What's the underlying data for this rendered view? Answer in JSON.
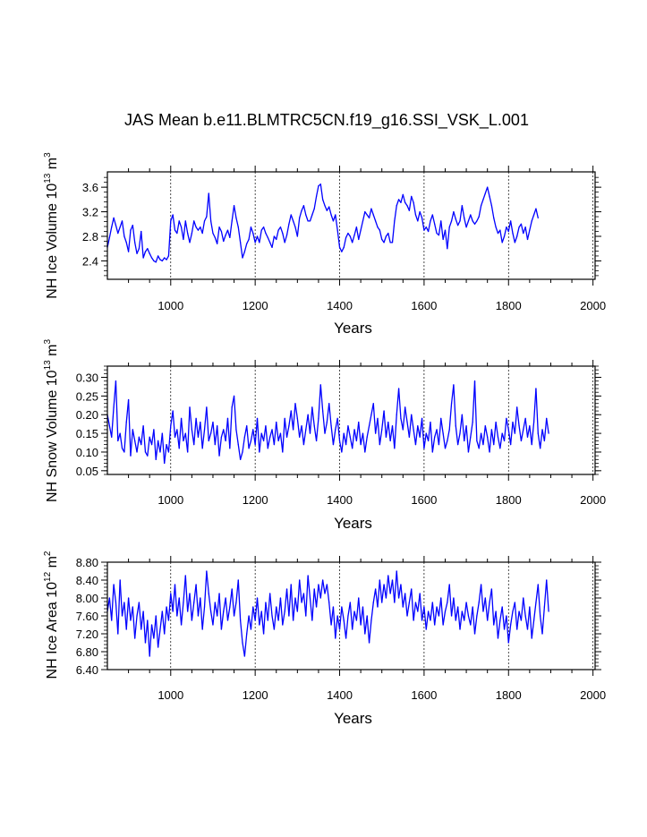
{
  "title": "JAS Mean b.e11.BLMTRC5CN.f19_g16.SSI_VSK_L.001",
  "series_color": "#0000ff",
  "chart_data": [
    {
      "type": "line",
      "name": "ice-volume",
      "ylabel": {
        "text": "NH Ice Volume 10",
        "exponent": "13",
        "unit": " m",
        "unit_exponent": "3"
      },
      "xlabel": "Years",
      "xlim": [
        850,
        2005
      ],
      "ylim": [
        2.1,
        3.85
      ],
      "xticks": [
        1000,
        1200,
        1400,
        1600,
        1800,
        2000
      ],
      "yticks": [
        "2.4",
        "2.8",
        "3.2",
        "3.6"
      ],
      "x_start": 850,
      "x_step": 5,
      "values": [
        2.62,
        2.78,
        2.95,
        3.1,
        2.98,
        2.85,
        2.95,
        3.05,
        2.8,
        2.7,
        2.55,
        2.9,
        2.98,
        2.7,
        2.52,
        2.6,
        2.88,
        2.45,
        2.55,
        2.6,
        2.52,
        2.45,
        2.4,
        2.38,
        2.48,
        2.42,
        2.4,
        2.45,
        2.42,
        2.48,
        3.05,
        3.15,
        2.9,
        2.85,
        3.05,
        2.95,
        2.75,
        3.05,
        2.85,
        2.7,
        2.85,
        3.05,
        2.95,
        2.9,
        2.95,
        2.85,
        3.05,
        3.12,
        3.5,
        3.05,
        2.85,
        2.78,
        2.68,
        2.95,
        2.88,
        2.72,
        2.82,
        2.9,
        2.78,
        3.05,
        3.3,
        3.1,
        2.95,
        2.7,
        2.45,
        2.55,
        2.68,
        2.75,
        2.95,
        2.85,
        2.7,
        2.8,
        2.7,
        2.9,
        2.95,
        2.85,
        2.78,
        2.7,
        2.62,
        2.8,
        2.75,
        2.9,
        2.95,
        2.85,
        2.7,
        2.82,
        3.0,
        3.15,
        3.05,
        2.95,
        2.8,
        3.1,
        3.22,
        3.3,
        3.15,
        3.05,
        3.05,
        3.15,
        3.25,
        3.45,
        3.62,
        3.65,
        3.4,
        3.3,
        3.22,
        3.28,
        3.15,
        3.05,
        3.15,
        2.9,
        2.62,
        2.55,
        2.62,
        2.78,
        2.85,
        2.8,
        2.7,
        2.82,
        2.95,
        2.75,
        2.9,
        3.05,
        3.2,
        3.15,
        3.1,
        3.25,
        3.15,
        3.05,
        2.95,
        2.9,
        2.75,
        2.7,
        2.8,
        2.85,
        2.7,
        2.7,
        3.05,
        3.3,
        3.4,
        3.35,
        3.48,
        3.35,
        3.3,
        3.22,
        3.45,
        3.35,
        3.15,
        3.05,
        3.2,
        3.1,
        2.9,
        2.95,
        2.88,
        3.05,
        3.15,
        3.0,
        2.85,
        2.82,
        3.05,
        2.75,
        2.9,
        2.6,
        2.95,
        3.05,
        3.2,
        3.08,
        2.98,
        3.05,
        3.3,
        3.1,
        2.95,
        3.05,
        3.15,
        3.05,
        3.0,
        3.05,
        3.12,
        3.3,
        3.4,
        3.5,
        3.6,
        3.45,
        3.3,
        3.1,
        2.95,
        2.85,
        2.9,
        2.7,
        2.8,
        2.95,
        2.88,
        3.05,
        2.85,
        2.7,
        2.8,
        2.95,
        3.0,
        2.85,
        2.95,
        2.75,
        2.9,
        3.05,
        3.15,
        3.25,
        3.1
      ]
    },
    {
      "type": "line",
      "name": "snow-volume",
      "ylabel": {
        "text": "NH Snow Volume 10",
        "exponent": "13",
        "unit": " m",
        "unit_exponent": "3"
      },
      "xlabel": "Years",
      "xlim": [
        850,
        2005
      ],
      "ylim": [
        0.04,
        0.33
      ],
      "xticks": [
        1000,
        1200,
        1400,
        1600,
        1800,
        2000
      ],
      "yticks": [
        "0.05",
        "0.10",
        "0.15",
        "0.20",
        "0.25",
        "0.30"
      ],
      "x_start": 850,
      "x_step": 5,
      "values": [
        0.2,
        0.17,
        0.14,
        0.22,
        0.29,
        0.13,
        0.15,
        0.11,
        0.1,
        0.18,
        0.24,
        0.09,
        0.16,
        0.13,
        0.1,
        0.14,
        0.12,
        0.17,
        0.1,
        0.09,
        0.14,
        0.12,
        0.16,
        0.08,
        0.13,
        0.1,
        0.15,
        0.07,
        0.12,
        0.1,
        0.17,
        0.21,
        0.14,
        0.16,
        0.11,
        0.19,
        0.13,
        0.15,
        0.1,
        0.22,
        0.16,
        0.12,
        0.19,
        0.14,
        0.18,
        0.11,
        0.16,
        0.22,
        0.13,
        0.15,
        0.18,
        0.12,
        0.17,
        0.09,
        0.14,
        0.16,
        0.13,
        0.19,
        0.11,
        0.22,
        0.25,
        0.16,
        0.12,
        0.08,
        0.1,
        0.14,
        0.17,
        0.11,
        0.13,
        0.16,
        0.12,
        0.19,
        0.1,
        0.15,
        0.13,
        0.17,
        0.11,
        0.14,
        0.16,
        0.12,
        0.18,
        0.13,
        0.15,
        0.1,
        0.19,
        0.14,
        0.17,
        0.21,
        0.16,
        0.23,
        0.19,
        0.14,
        0.17,
        0.12,
        0.16,
        0.2,
        0.15,
        0.22,
        0.17,
        0.13,
        0.19,
        0.28,
        0.21,
        0.15,
        0.18,
        0.23,
        0.17,
        0.12,
        0.16,
        0.19,
        0.13,
        0.1,
        0.15,
        0.12,
        0.17,
        0.14,
        0.11,
        0.16,
        0.13,
        0.18,
        0.12,
        0.15,
        0.1,
        0.14,
        0.17,
        0.2,
        0.23,
        0.15,
        0.19,
        0.12,
        0.16,
        0.21,
        0.14,
        0.18,
        0.13,
        0.17,
        0.11,
        0.2,
        0.27,
        0.19,
        0.16,
        0.22,
        0.18,
        0.14,
        0.2,
        0.16,
        0.12,
        0.17,
        0.14,
        0.19,
        0.11,
        0.15,
        0.13,
        0.18,
        0.1,
        0.14,
        0.16,
        0.12,
        0.19,
        0.15,
        0.11,
        0.13,
        0.16,
        0.23,
        0.28,
        0.17,
        0.12,
        0.15,
        0.2,
        0.13,
        0.17,
        0.1,
        0.14,
        0.18,
        0.29,
        0.13,
        0.11,
        0.15,
        0.12,
        0.17,
        0.14,
        0.1,
        0.16,
        0.12,
        0.18,
        0.14,
        0.11,
        0.15,
        0.13,
        0.19,
        0.16,
        0.12,
        0.18,
        0.15,
        0.22,
        0.17,
        0.13,
        0.16,
        0.19,
        0.14,
        0.17,
        0.12,
        0.18,
        0.27,
        0.15,
        0.11,
        0.16,
        0.13,
        0.19,
        0.15
      ]
    },
    {
      "type": "line",
      "name": "ice-area",
      "ylabel": {
        "text": "NH Ice Area 10",
        "exponent": "12",
        "unit": " m",
        "unit_exponent": "2"
      },
      "xlabel": "Years",
      "xlim": [
        850,
        2005
      ],
      "ylim": [
        6.4,
        8.8
      ],
      "xticks": [
        1000,
        1200,
        1400,
        1600,
        1800,
        2000
      ],
      "yticks": [
        "6.40",
        "6.80",
        "7.20",
        "7.60",
        "8.00",
        "8.40",
        "8.80"
      ],
      "x_start": 850,
      "x_step": 5,
      "values": [
        7.7,
        8.0,
        7.5,
        8.3,
        7.9,
        7.2,
        8.4,
        7.6,
        7.9,
        7.3,
        8.0,
        7.5,
        7.8,
        7.1,
        7.6,
        7.9,
        7.3,
        7.7,
        7.0,
        7.5,
        6.7,
        7.4,
        7.1,
        7.6,
        6.9,
        7.3,
        7.7,
        7.2,
        7.8,
        7.5,
        8.1,
        7.7,
        8.3,
        7.6,
        8.0,
        7.4,
        7.9,
        8.5,
        7.7,
        8.1,
        7.5,
        7.9,
        8.3,
        7.6,
        8.0,
        7.3,
        7.8,
        8.6,
        8.1,
        7.7,
        7.4,
        7.9,
        7.6,
        8.1,
        7.3,
        7.7,
        8.0,
        7.5,
        7.8,
        8.2,
        7.6,
        7.9,
        8.4,
        7.5,
        7.0,
        6.7,
        7.2,
        7.6,
        7.3,
        7.8,
        7.5,
        8.0,
        7.4,
        7.7,
        7.2,
        7.9,
        7.5,
        8.1,
        7.6,
        7.3,
        7.8,
        7.5,
        8.0,
        7.4,
        7.7,
        8.2,
        7.6,
        8.3,
        7.5,
        8.0,
        7.7,
        8.4,
        7.9,
        8.1,
        7.6,
        8.5,
        8.0,
        7.5,
        8.2,
        7.8,
        8.3,
        8.0,
        8.4,
        8.1,
        8.3,
        7.9,
        7.4,
        7.8,
        7.1,
        7.6,
        7.3,
        7.8,
        7.5,
        7.1,
        7.6,
        7.9,
        7.3,
        7.7,
        7.5,
        8.0,
        7.4,
        7.8,
        7.2,
        7.6,
        7.0,
        7.5,
        7.9,
        8.2,
        7.8,
        8.4,
        7.9,
        8.3,
        8.0,
        8.5,
        8.1,
        8.4,
        7.9,
        8.6,
        8.0,
        8.3,
        7.8,
        8.1,
        7.6,
        7.9,
        8.2,
        7.5,
        7.9,
        7.7,
        8.1,
        7.5,
        7.8,
        7.3,
        7.7,
        7.5,
        7.9,
        7.4,
        7.8,
        7.6,
        8.0,
        7.4,
        7.7,
        7.9,
        8.3,
        7.6,
        8.0,
        7.5,
        7.8,
        7.3,
        7.7,
        7.5,
        7.9,
        7.6,
        7.4,
        7.8,
        7.2,
        7.6,
        7.9,
        8.3,
        7.7,
        8.0,
        7.5,
        7.9,
        8.2,
        7.4,
        7.7,
        7.1,
        7.5,
        7.8,
        7.3,
        7.6,
        7.0,
        7.4,
        7.7,
        7.9,
        7.3,
        7.7,
        7.5,
        8.0,
        7.6,
        7.3,
        7.8,
        7.1,
        7.5,
        7.9,
        8.3,
        7.6,
        7.2,
        7.8,
        8.4,
        7.7
      ]
    }
  ]
}
